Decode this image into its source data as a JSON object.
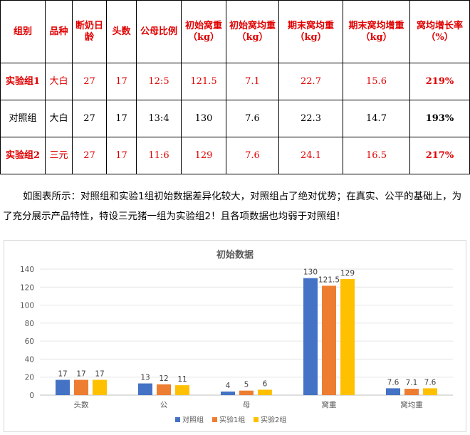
{
  "table": {
    "headers": [
      "组别",
      "品种",
      "断奶日龄",
      "头数",
      "公母比例",
      "初始窝重（kg）",
      "初始窝均重（kg）",
      "期末窝均重（kg）",
      "期末窝均增重（kg）",
      "窝均增长率（%）"
    ],
    "header_lines": [
      [
        "组别"
      ],
      [
        "品种"
      ],
      [
        "断奶日",
        "龄"
      ],
      [
        "头数"
      ],
      [
        "公母比例"
      ],
      [
        "初始窝重",
        "（kg）"
      ],
      [
        "初始窝均重",
        "（kg）"
      ],
      [
        "期末窝均重",
        "（kg）"
      ],
      [
        "期末窝均增重",
        "（kg）"
      ],
      [
        "窝均增长率",
        "（%）"
      ]
    ],
    "rows": [
      [
        "实验组1",
        "大白",
        "27",
        "17",
        "12:5",
        "121.5",
        "7.1",
        "22.7",
        "15.6",
        "219%"
      ],
      [
        "对照组",
        "大白",
        "27",
        "17",
        "13:4",
        "130",
        "7.6",
        "22.3",
        "14.7",
        "193%"
      ],
      [
        "实验组2",
        "三元",
        "27",
        "17",
        "11:6",
        "129",
        "7.6",
        "24.1",
        "16.5",
        "217%"
      ]
    ]
  },
  "paragraph": "如图表所示：对照组和实验1组初始数据差异化较大，对照组占了绝对优势；在真实、公平的基础上，为了充分展示产品特性，特设三元猪一组为实验组2！且各项数据也均弱于对照组！",
  "chart_data": {
    "type": "bar",
    "title": "初始数据",
    "categories": [
      "头数",
      "公",
      "母",
      "窝重",
      "窝均重"
    ],
    "series": [
      {
        "name": "对照组",
        "values": [
          17,
          13,
          4,
          130,
          7.6
        ],
        "color": "#4472c4"
      },
      {
        "name": "实验1组",
        "values": [
          17,
          12,
          5,
          121.5,
          7.1
        ],
        "color": "#ed7d31"
      },
      {
        "name": "实验2组",
        "values": [
          17,
          11,
          6,
          129,
          7.6
        ],
        "color": "#ffc000"
      }
    ],
    "ylim": [
      0,
      140
    ],
    "yticks": [
      0,
      20,
      40,
      60,
      80,
      100,
      120,
      140
    ],
    "grid": true,
    "legend": "bottom",
    "xlabel": "",
    "ylabel": ""
  }
}
